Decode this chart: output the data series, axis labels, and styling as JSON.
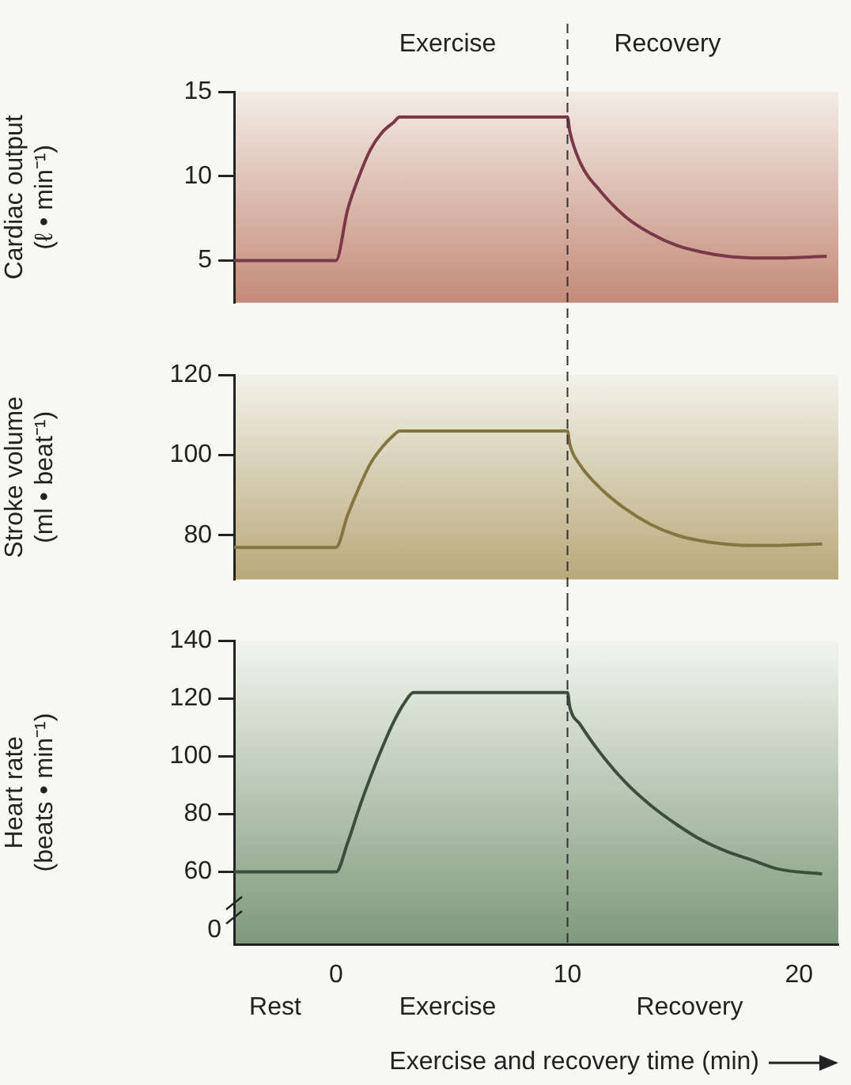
{
  "chart_data": [
    {
      "type": "line",
      "ylabel": "Cardiac output\n(ℓ • min⁻¹)",
      "color": "#7a3848",
      "tick_labels": "y",
      "marker": "none",
      "line_style": "solid",
      "x": [
        -4.4,
        0,
        0.5,
        1,
        1.5,
        2,
        2.5,
        2.75,
        10,
        10.1,
        10.55,
        11.43,
        12.5,
        13.6,
        14.7,
        15.8,
        16.9,
        18,
        19.1,
        21.2
      ],
      "values": [
        5,
        5,
        8,
        10,
        11.6,
        12.6,
        13.2,
        13.5,
        13.5,
        12.65,
        10.8,
        9.1,
        7.6,
        6.6,
        5.9,
        5.5,
        5.25,
        5.15,
        5.15,
        5.25
      ],
      "xlim": [
        -4.4,
        21.7
      ],
      "ylim": [
        2.5,
        15
      ],
      "yticks": [
        5,
        10,
        15
      ],
      "ref_lines": [
        {
          "axis": "x",
          "value": 10,
          "line_style": "dashed",
          "color": "#333333"
        }
      ],
      "annotations": [
        "Exercise",
        "Recovery"
      ]
    },
    {
      "type": "line",
      "ylabel": "Stroke volume\n(ml • beat⁻¹)",
      "color": "#857540",
      "tick_labels": "y",
      "marker": "none",
      "line_style": "solid",
      "x": [
        -4.4,
        0,
        0.5,
        1,
        1.5,
        2,
        2.5,
        2.75,
        10,
        10.1,
        10.55,
        11.43,
        12.5,
        13.6,
        14.7,
        15.8,
        16.9,
        18,
        19.1,
        21
      ],
      "values": [
        77,
        77,
        85,
        92,
        98,
        102,
        105,
        106,
        106,
        102.7,
        97.5,
        91.7,
        86.6,
        82.7,
        80.1,
        78.6,
        77.8,
        77.5,
        77.5,
        77.9
      ],
      "xlim": [
        -4.4,
        21.7
      ],
      "ylim": [
        69,
        120
      ],
      "yticks": [
        80,
        100,
        120
      ],
      "ref_lines": [
        {
          "axis": "x",
          "value": 10,
          "line_style": "dashed",
          "color": "#333333"
        }
      ]
    },
    {
      "type": "line",
      "ylabel": "Heart rate\n(beats • min⁻¹)",
      "xlabel": "Exercise and recovery time (min)",
      "color": "#3c4e3c",
      "marker": "none",
      "line_style": "solid",
      "x": [
        -4.4,
        0,
        0.5,
        1,
        1.5,
        2,
        2.5,
        3,
        3.35,
        10,
        10.1,
        10.55,
        11.43,
        12.5,
        13.6,
        14.7,
        15.8,
        16.9,
        18,
        19.1,
        21
      ],
      "values": [
        60,
        60,
        70,
        82,
        93,
        103,
        112,
        119,
        122,
        122,
        117,
        111,
        101,
        91,
        83,
        76.5,
        71,
        67,
        64,
        61,
        59.3
      ],
      "xlim": [
        -4.4,
        21.7
      ],
      "xticks": [
        0,
        10,
        20
      ],
      "ylim": [
        35,
        140
      ],
      "yticks": [
        60,
        80,
        100,
        120,
        140
      ],
      "ref_lines": [
        {
          "axis": "x",
          "value": 10,
          "line_style": "dashed",
          "color": "#333333"
        }
      ],
      "annotations": [
        "0",
        "Rest",
        "Exercise",
        "Recovery"
      ]
    }
  ]
}
